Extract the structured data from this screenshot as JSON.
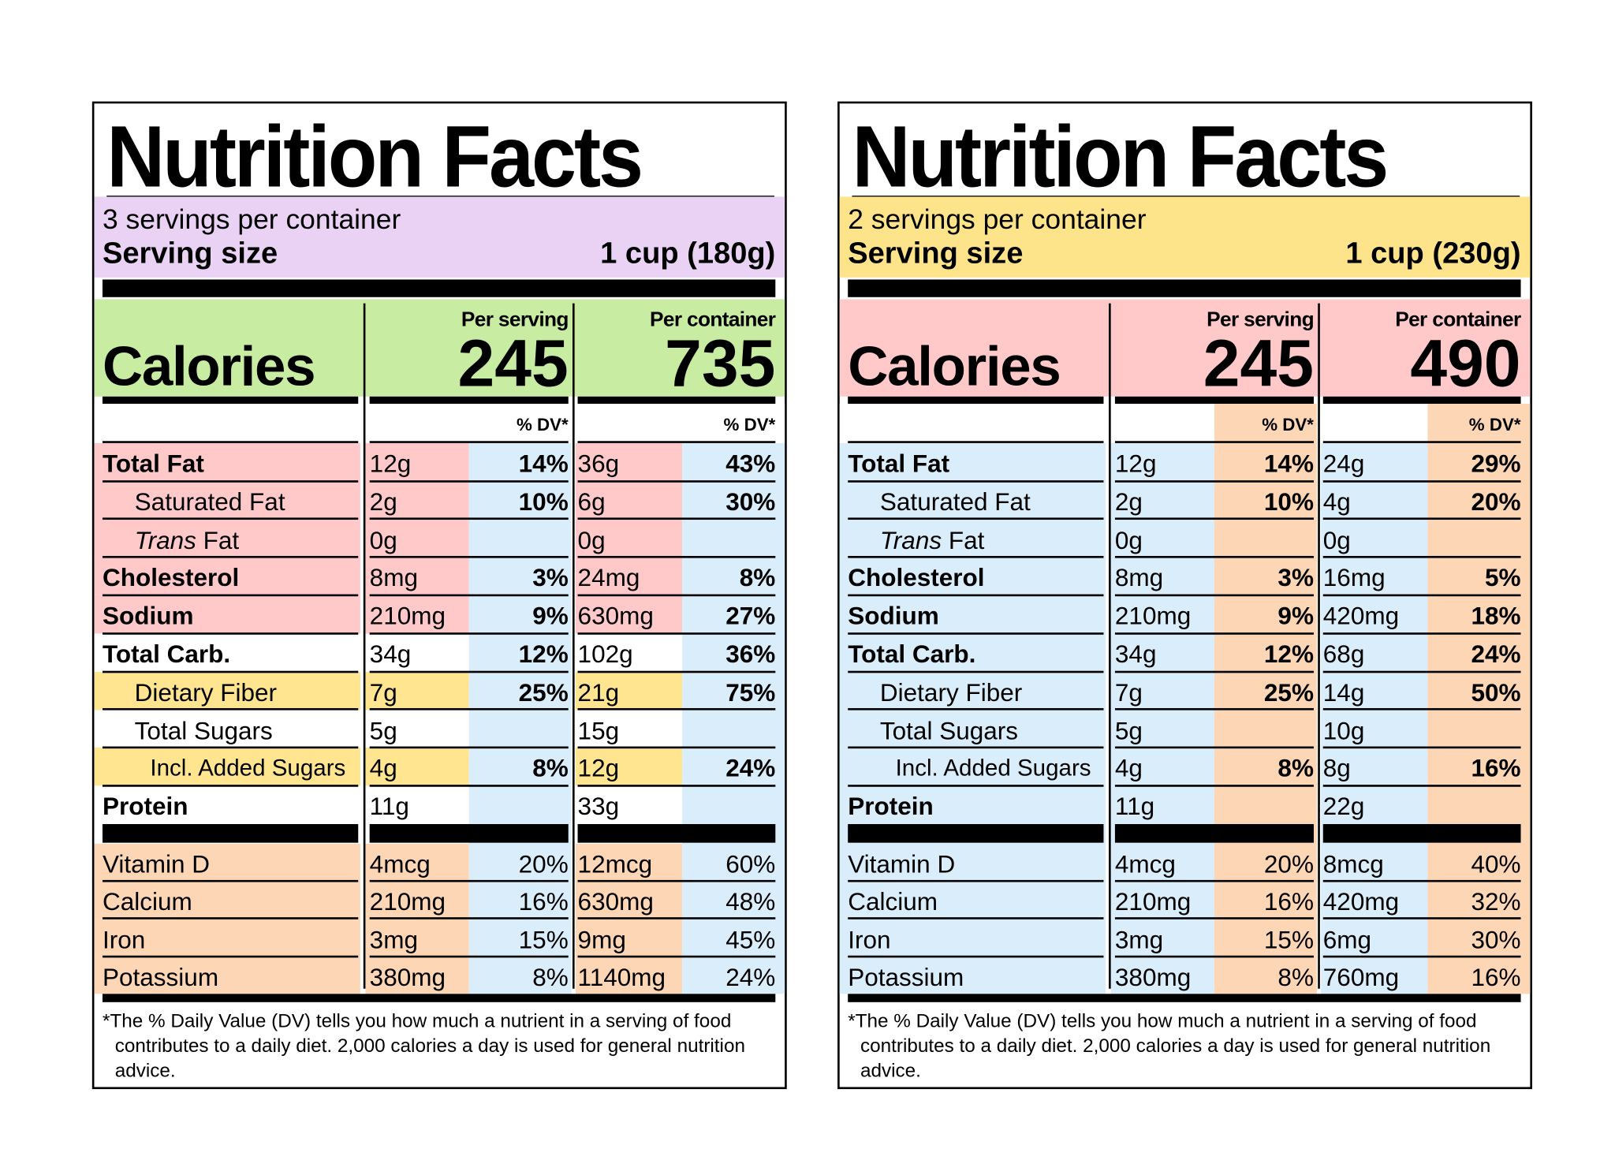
{
  "labels": [
    {
      "title": "Nutrition Facts",
      "servings": "3 servings per container",
      "serving_size_label": "Serving size",
      "serving_size_value": "1 cup (180g)",
      "calories_label": "Calories",
      "per_serving_label": "Per serving",
      "per_container_label": "Per container",
      "calories_per_serving": "245",
      "calories_per_container": "735",
      "dv_header": "% DV*",
      "colors": {
        "servings_band": "#e9d2f4",
        "calories_band": "#c7eca2",
        "header_row": [
          "#ffffff",
          "#ffffff",
          "#ffffff"
        ],
        "bar_row": [
          "#ffffff",
          "#ffffff",
          "#d9eefa"
        ]
      },
      "nutrients": [
        {
          "name": "Total Fat",
          "bold": true,
          "indent": 0,
          "serving_amount": "12g",
          "serving_dv": "14%",
          "container_amount": "36g",
          "container_dv": "43%",
          "colors": [
            "#ffc9c9",
            "#ffc9c9",
            "#d9eefa"
          ]
        },
        {
          "name": "Saturated Fat",
          "bold": false,
          "indent": 1,
          "serving_amount": "2g",
          "serving_dv": "10%",
          "container_amount": "6g",
          "container_dv": "30%",
          "colors": [
            "#ffc9c9",
            "#ffc9c9",
            "#d9eefa"
          ]
        },
        {
          "italic": "Trans",
          "name": " Fat",
          "bold": false,
          "indent": 1,
          "serving_amount": "0g",
          "serving_dv": "",
          "container_amount": "0g",
          "container_dv": "",
          "colors": [
            "#ffc9c9",
            "#ffc9c9",
            "#d9eefa"
          ]
        },
        {
          "name": "Cholesterol",
          "bold": true,
          "indent": 0,
          "serving_amount": "8mg",
          "serving_dv": "3%",
          "container_amount": "24mg",
          "container_dv": "8%",
          "colors": [
            "#ffc9c9",
            "#ffc9c9",
            "#d9eefa"
          ]
        },
        {
          "name": "Sodium",
          "bold": true,
          "indent": 0,
          "serving_amount": "210mg",
          "serving_dv": "9%",
          "container_amount": "630mg",
          "container_dv": "27%",
          "colors": [
            "#ffc9c9",
            "#ffc9c9",
            "#d9eefa"
          ]
        },
        {
          "name": "Total Carb.",
          "bold": true,
          "indent": 0,
          "serving_amount": "34g",
          "serving_dv": "12%",
          "container_amount": "102g",
          "container_dv": "36%",
          "colors": [
            "#ffffff",
            "#ffffff",
            "#d9eefa"
          ]
        },
        {
          "name": "Dietary Fiber",
          "bold": false,
          "indent": 1,
          "serving_amount": "7g",
          "serving_dv": "25%",
          "container_amount": "21g",
          "container_dv": "75%",
          "colors": [
            "#ffe58f",
            "#ffe58f",
            "#d9eefa"
          ]
        },
        {
          "name": "Total Sugars",
          "bold": false,
          "indent": 1,
          "serving_amount": "5g",
          "serving_dv": "",
          "container_amount": "15g",
          "container_dv": "",
          "colors": [
            "#ffffff",
            "#ffffff",
            "#d9eefa"
          ]
        },
        {
          "name": "Incl. Added Sugars",
          "bold": false,
          "indent": 2,
          "serving_amount": "4g",
          "serving_dv": "8%",
          "container_amount": "12g",
          "container_dv": "24%",
          "colors": [
            "#ffe58f",
            "#ffe58f",
            "#d9eefa"
          ]
        },
        {
          "name": "Protein",
          "bold": true,
          "indent": 0,
          "serving_amount": "11g",
          "serving_dv": "",
          "container_amount": "33g",
          "container_dv": "",
          "colors": [
            "#ffffff",
            "#ffffff",
            "#d9eefa"
          ]
        }
      ],
      "vitamins": [
        {
          "name": "Vitamin D",
          "serving_amount": "4mcg",
          "serving_dv": "20%",
          "container_amount": "12mcg",
          "container_dv": "60%",
          "colors": [
            "#fdd6b5",
            "#fdd6b5",
            "#d9eefa"
          ]
        },
        {
          "name": "Calcium",
          "serving_amount": "210mg",
          "serving_dv": "16%",
          "container_amount": "630mg",
          "container_dv": "48%",
          "colors": [
            "#fdd6b5",
            "#fdd6b5",
            "#d9eefa"
          ]
        },
        {
          "name": "Iron",
          "serving_amount": "3mg",
          "serving_dv": "15%",
          "container_amount": "9mg",
          "container_dv": "45%",
          "colors": [
            "#fdd6b5",
            "#fdd6b5",
            "#d9eefa"
          ]
        },
        {
          "name": "Potassium",
          "serving_amount": "380mg",
          "serving_dv": "8%",
          "container_amount": "1140mg",
          "container_dv": "24%",
          "colors": [
            "#fdd6b5",
            "#fdd6b5",
            "#d9eefa"
          ]
        }
      ],
      "footnote": "*The % Daily Value (DV) tells you how much a nutrient in a serving of food contributes to a daily diet. 2,000 calories a day is used for general nutrition advice."
    },
    {
      "title": "Nutrition Facts",
      "servings": "2 servings per container",
      "serving_size_label": "Serving size",
      "serving_size_value": "1 cup (230g)",
      "calories_label": "Calories",
      "per_serving_label": "Per serving",
      "per_container_label": "Per container",
      "calories_per_serving": "245",
      "calories_per_container": "490",
      "dv_header": "% DV*",
      "colors": {
        "servings_band": "#fde38a",
        "calories_band": "#ffc9c9",
        "header_row": [
          "#ffffff",
          "#ffffff",
          "#fdd6b5"
        ],
        "bar_row": [
          "#d9eefa",
          "#d9eefa",
          "#fdd6b5"
        ]
      },
      "nutrients": [
        {
          "name": "Total Fat",
          "bold": true,
          "indent": 0,
          "serving_amount": "12g",
          "serving_dv": "14%",
          "container_amount": "24g",
          "container_dv": "29%",
          "colors": [
            "#d9eefa",
            "#d9eefa",
            "#fdd6b5"
          ]
        },
        {
          "name": "Saturated Fat",
          "bold": false,
          "indent": 1,
          "serving_amount": "2g",
          "serving_dv": "10%",
          "container_amount": "4g",
          "container_dv": "20%",
          "colors": [
            "#d9eefa",
            "#d9eefa",
            "#fdd6b5"
          ]
        },
        {
          "italic": "Trans",
          "name": " Fat",
          "bold": false,
          "indent": 1,
          "serving_amount": "0g",
          "serving_dv": "",
          "container_amount": "0g",
          "container_dv": "",
          "colors": [
            "#d9eefa",
            "#d9eefa",
            "#fdd6b5"
          ]
        },
        {
          "name": "Cholesterol",
          "bold": true,
          "indent": 0,
          "serving_amount": "8mg",
          "serving_dv": "3%",
          "container_amount": "16mg",
          "container_dv": "5%",
          "colors": [
            "#d9eefa",
            "#d9eefa",
            "#fdd6b5"
          ]
        },
        {
          "name": "Sodium",
          "bold": true,
          "indent": 0,
          "serving_amount": "210mg",
          "serving_dv": "9%",
          "container_amount": "420mg",
          "container_dv": "18%",
          "colors": [
            "#d9eefa",
            "#d9eefa",
            "#fdd6b5"
          ]
        },
        {
          "name": "Total Carb.",
          "bold": true,
          "indent": 0,
          "serving_amount": "34g",
          "serving_dv": "12%",
          "container_amount": "68g",
          "container_dv": "24%",
          "colors": [
            "#d9eefa",
            "#d9eefa",
            "#fdd6b5"
          ]
        },
        {
          "name": "Dietary Fiber",
          "bold": false,
          "indent": 1,
          "serving_amount": "7g",
          "serving_dv": "25%",
          "container_amount": "14g",
          "container_dv": "50%",
          "colors": [
            "#d9eefa",
            "#d9eefa",
            "#fdd6b5"
          ]
        },
        {
          "name": "Total Sugars",
          "bold": false,
          "indent": 1,
          "serving_amount": "5g",
          "serving_dv": "",
          "container_amount": "10g",
          "container_dv": "",
          "colors": [
            "#d9eefa",
            "#d9eefa",
            "#fdd6b5"
          ]
        },
        {
          "name": "Incl. Added Sugars",
          "bold": false,
          "indent": 2,
          "serving_amount": "4g",
          "serving_dv": "8%",
          "container_amount": "8g",
          "container_dv": "16%",
          "colors": [
            "#d9eefa",
            "#d9eefa",
            "#fdd6b5"
          ]
        },
        {
          "name": "Protein",
          "bold": true,
          "indent": 0,
          "serving_amount": "11g",
          "serving_dv": "",
          "container_amount": "22g",
          "container_dv": "",
          "colors": [
            "#d9eefa",
            "#d9eefa",
            "#fdd6b5"
          ]
        }
      ],
      "vitamins": [
        {
          "name": "Vitamin D",
          "serving_amount": "4mcg",
          "serving_dv": "20%",
          "container_amount": "8mcg",
          "container_dv": "40%",
          "colors": [
            "#d9eefa",
            "#d9eefa",
            "#fdd6b5"
          ]
        },
        {
          "name": "Calcium",
          "serving_amount": "210mg",
          "serving_dv": "16%",
          "container_amount": "420mg",
          "container_dv": "32%",
          "colors": [
            "#d9eefa",
            "#d9eefa",
            "#fdd6b5"
          ]
        },
        {
          "name": "Iron",
          "serving_amount": "3mg",
          "serving_dv": "15%",
          "container_amount": "6mg",
          "container_dv": "30%",
          "colors": [
            "#d9eefa",
            "#d9eefa",
            "#fdd6b5"
          ]
        },
        {
          "name": "Potassium",
          "serving_amount": "380mg",
          "serving_dv": "8%",
          "container_amount": "760mg",
          "container_dv": "16%",
          "colors": [
            "#d9eefa",
            "#d9eefa",
            "#fdd6b5"
          ]
        }
      ],
      "footnote": "*The % Daily Value (DV) tells you how much a nutrient in a serving of food contributes to a daily diet. 2,000 calories a day is used for general nutrition advice."
    }
  ]
}
